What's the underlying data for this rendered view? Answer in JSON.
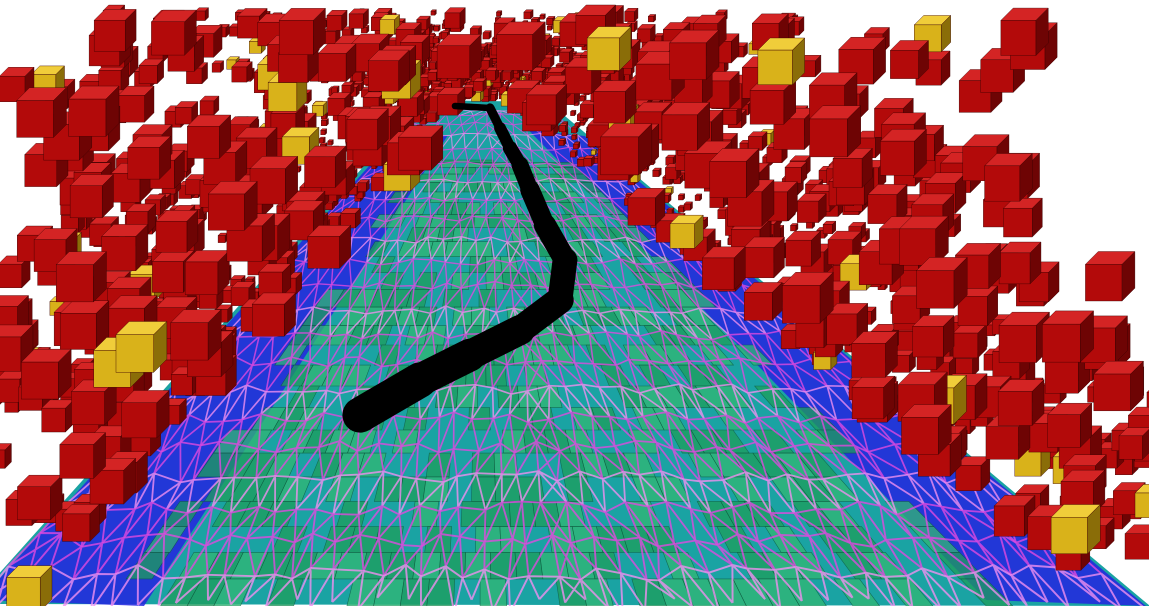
{
  "scene": {
    "description_kind": "3d-voxel-map-render",
    "colors": {
      "background": "#ffffff",
      "voxel_occupied": "#b30a0a",
      "voxel_occupied_dark": "#6e0404",
      "voxel_occupied_light": "#d42424",
      "voxel_unknown": "#d9b21a",
      "voxel_unknown_dark": "#8a6d08",
      "floor_free": "#1f9e5c",
      "floor_free_light": "#33b874",
      "floor_cyan": "#1aa3a3",
      "floor_blue": "#2525e0",
      "mesh_wire": "#e048e0",
      "mesh_wire_light": "#f08ef0",
      "path": "#000000"
    },
    "icons": [
      "voxel-block-icon",
      "planned-path-icon",
      "traversability-mesh-icon"
    ]
  }
}
